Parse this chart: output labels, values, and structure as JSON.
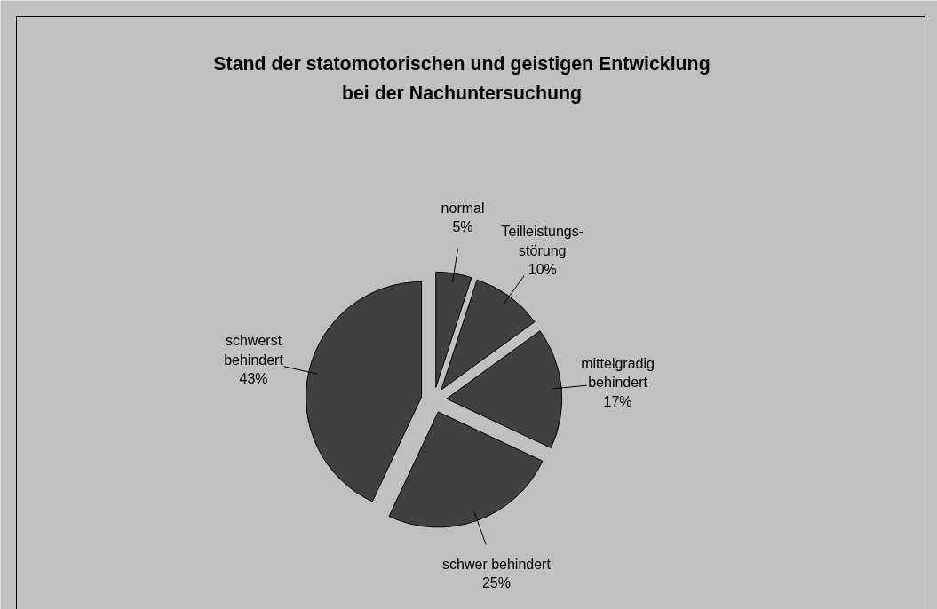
{
  "chart_data": {
    "type": "pie",
    "title": "Stand der statomotorischen und geistigen Entwicklung\nbei der Nachuntersuchung",
    "categories": [
      "normal",
      "Teilleistungs-\nstörung",
      "mittelgradig\nbehindert",
      "schwer behindert",
      "schwerst\nbehindert"
    ],
    "values": [
      5,
      10,
      17,
      25,
      43
    ],
    "value_labels": [
      "5%",
      "10%",
      "17%",
      "25%",
      "43%"
    ],
    "colors": [
      "#404040",
      "#404040",
      "#404040",
      "#404040",
      "#404040"
    ]
  }
}
